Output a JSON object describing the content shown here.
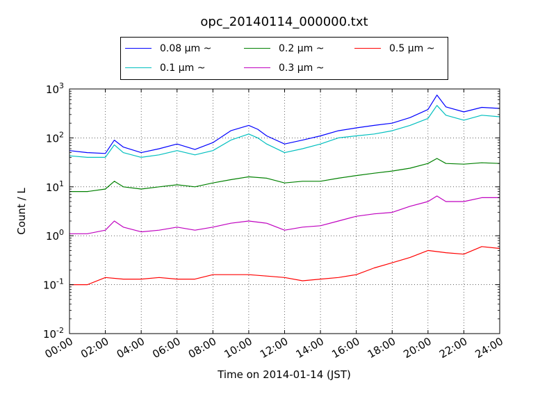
{
  "chart_data": {
    "type": "line",
    "title": "opc_20140114_000000.txt",
    "xlabel": "Time on 2014-01-14 (JST)",
    "ylabel": "Count / L",
    "yscale": "log",
    "ylim": [
      0.01,
      1000
    ],
    "xlim": [
      "00:00",
      "24:00"
    ],
    "x_ticks": [
      "00:00",
      "02:00",
      "04:00",
      "06:00",
      "08:00",
      "10:00",
      "12:00",
      "14:00",
      "16:00",
      "18:00",
      "20:00",
      "22:00",
      "24:00"
    ],
    "y_ticks": [
      {
        "base": "10",
        "exp": "-2",
        "value": 0.01
      },
      {
        "base": "10",
        "exp": "-1",
        "value": 0.1
      },
      {
        "base": "10",
        "exp": "0",
        "value": 1
      },
      {
        "base": "10",
        "exp": "1",
        "value": 10
      },
      {
        "base": "10",
        "exp": "2",
        "value": 100
      },
      {
        "base": "10",
        "exp": "3",
        "value": 1000
      }
    ],
    "grid": true,
    "legend_position": "top-center",
    "series": [
      {
        "name": "0.08 μm ~",
        "color": "#0000ff",
        "x": [
          "00:00",
          "01:00",
          "02:00",
          "02:30",
          "03:00",
          "04:00",
          "05:00",
          "06:00",
          "07:00",
          "08:00",
          "09:00",
          "10:00",
          "10:30",
          "11:00",
          "12:00",
          "13:00",
          "14:00",
          "15:00",
          "16:00",
          "17:00",
          "18:00",
          "19:00",
          "20:00",
          "20:30",
          "21:00",
          "22:00",
          "23:00",
          "24:00"
        ],
        "values": [
          55,
          50,
          48,
          90,
          65,
          50,
          60,
          75,
          58,
          80,
          140,
          180,
          150,
          110,
          75,
          90,
          110,
          140,
          160,
          180,
          200,
          260,
          380,
          750,
          430,
          340,
          420,
          400
        ]
      },
      {
        "name": "0.1 μm ~",
        "color": "#00bfbf",
        "x": [
          "00:00",
          "01:00",
          "02:00",
          "02:30",
          "03:00",
          "04:00",
          "05:00",
          "06:00",
          "07:00",
          "08:00",
          "09:00",
          "10:00",
          "10:30",
          "11:00",
          "12:00",
          "13:00",
          "14:00",
          "15:00",
          "16:00",
          "17:00",
          "18:00",
          "19:00",
          "20:00",
          "20:30",
          "21:00",
          "22:00",
          "23:00",
          "24:00"
        ],
        "values": [
          43,
          40,
          40,
          72,
          50,
          40,
          45,
          55,
          45,
          55,
          90,
          120,
          100,
          75,
          50,
          60,
          75,
          100,
          110,
          120,
          140,
          180,
          250,
          460,
          290,
          230,
          290,
          270
        ]
      },
      {
        "name": "0.2 μm ~",
        "color": "#008000",
        "x": [
          "00:00",
          "01:00",
          "02:00",
          "02:30",
          "03:00",
          "04:00",
          "05:00",
          "06:00",
          "07:00",
          "08:00",
          "09:00",
          "10:00",
          "11:00",
          "12:00",
          "13:00",
          "14:00",
          "15:00",
          "16:00",
          "17:00",
          "18:00",
          "19:00",
          "20:00",
          "20:30",
          "21:00",
          "22:00",
          "23:00",
          "24:00"
        ],
        "values": [
          8,
          8,
          9,
          13,
          10,
          9,
          10,
          11,
          10,
          12,
          14,
          16,
          15,
          12,
          13,
          13,
          15,
          17,
          19,
          21,
          24,
          30,
          38,
          30,
          29,
          31,
          30
        ]
      },
      {
        "name": "0.3 μm ~",
        "color": "#bf00bf",
        "x": [
          "00:00",
          "01:00",
          "02:00",
          "02:30",
          "03:00",
          "04:00",
          "05:00",
          "06:00",
          "07:00",
          "08:00",
          "09:00",
          "10:00",
          "11:00",
          "12:00",
          "13:00",
          "14:00",
          "15:00",
          "16:00",
          "17:00",
          "18:00",
          "19:00",
          "20:00",
          "20:30",
          "21:00",
          "22:00",
          "23:00",
          "24:00"
        ],
        "values": [
          1.1,
          1.1,
          1.3,
          2.0,
          1.5,
          1.2,
          1.3,
          1.5,
          1.3,
          1.5,
          1.8,
          2.0,
          1.8,
          1.3,
          1.5,
          1.6,
          2.0,
          2.5,
          2.8,
          3.0,
          4.0,
          5.0,
          6.5,
          5.0,
          5.0,
          6.0,
          6.0
        ]
      },
      {
        "name": "0.5 μm ~",
        "color": "#ff0000",
        "x": [
          "00:00",
          "01:00",
          "02:00",
          "03:00",
          "04:00",
          "05:00",
          "06:00",
          "07:00",
          "08:00",
          "09:00",
          "10:00",
          "11:00",
          "12:00",
          "13:00",
          "14:00",
          "15:00",
          "16:00",
          "17:00",
          "18:00",
          "19:00",
          "20:00",
          "21:00",
          "22:00",
          "23:00",
          "24:00"
        ],
        "values": [
          0.1,
          0.1,
          0.14,
          0.13,
          0.13,
          0.14,
          0.13,
          0.13,
          0.16,
          0.16,
          0.16,
          0.15,
          0.14,
          0.12,
          0.13,
          0.14,
          0.16,
          0.22,
          0.28,
          0.36,
          0.5,
          0.45,
          0.42,
          0.6,
          0.55
        ]
      }
    ]
  }
}
